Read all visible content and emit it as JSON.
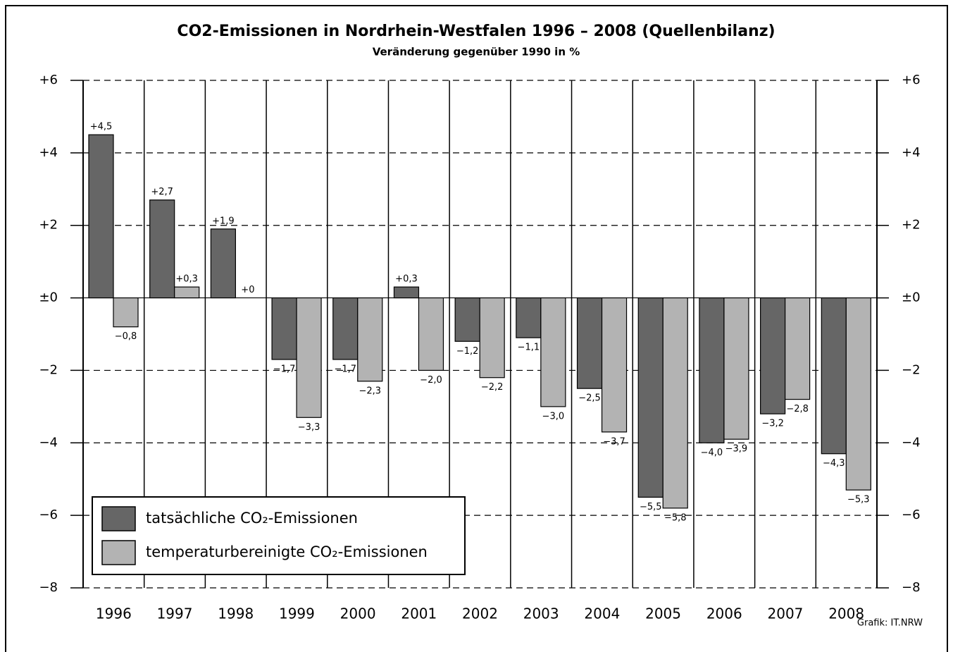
{
  "chart_data": {
    "type": "bar",
    "title": "CO2-Emissionen in Nordrhein-Westfalen 1996 – 2008 (Quellenbilanz)",
    "subtitle": "Veränderung gegenüber 1990 in %",
    "source": "Grafik: IT.NRW",
    "categories": [
      "1996",
      "1997",
      "1998",
      "1999",
      "2000",
      "2001",
      "2002",
      "2003",
      "2004",
      "2005",
      "2006",
      "2007",
      "2008"
    ],
    "series": [
      {
        "name": "tatsächliche CO₂-Emissionen",
        "color": "#666666",
        "values": [
          4.5,
          2.7,
          1.9,
          -1.7,
          -1.7,
          0.3,
          -1.2,
          -1.1,
          -2.5,
          -5.5,
          -4.0,
          -3.2,
          -4.3
        ],
        "value_labels": [
          "+4,5",
          "+2,7",
          "+1,9",
          "−1,7",
          "−1,7",
          "+0,3",
          "−1,2",
          "−1,1",
          "−2,5",
          "−5,5",
          "−4,0",
          "−3,2",
          "−4,3"
        ]
      },
      {
        "name": "temperaturbereinigte CO₂-Emissionen",
        "color": "#b3b3b3",
        "values": [
          -0.8,
          0.3,
          0,
          -3.3,
          -2.3,
          -2.0,
          -2.2,
          -3.0,
          -3.7,
          -5.8,
          -3.9,
          -2.8,
          -5.3
        ],
        "value_labels": [
          "−0,8",
          "+0,3",
          "+0",
          "−3,3",
          "−2,3",
          "−2,0",
          "−2,2",
          "−3,0",
          "−3,7",
          "−5,8",
          "−3,9",
          "−2,8",
          "−5,3"
        ]
      }
    ],
    "ylim": [
      -8,
      6
    ],
    "yticks": [
      {
        "value": 6,
        "label": "+6"
      },
      {
        "value": 4,
        "label": "+4"
      },
      {
        "value": 2,
        "label": "+2"
      },
      {
        "value": 0,
        "label": "±0"
      },
      {
        "value": -2,
        "label": "−2"
      },
      {
        "value": -4,
        "label": "−4"
      },
      {
        "value": -6,
        "label": "−6"
      },
      {
        "value": -8,
        "label": "−8"
      }
    ],
    "y2lim": [
      -8,
      6
    ],
    "y2ticks": [
      {
        "value": 6,
        "label": "+6"
      },
      {
        "value": 4,
        "label": "+4"
      },
      {
        "value": 2,
        "label": "+2"
      },
      {
        "value": 0,
        "label": "±0"
      },
      {
        "value": -2,
        "label": "−2"
      },
      {
        "value": -4,
        "label": "−4"
      },
      {
        "value": -6,
        "label": "−6"
      },
      {
        "value": -8,
        "label": "−8"
      }
    ],
    "grid": true
  }
}
